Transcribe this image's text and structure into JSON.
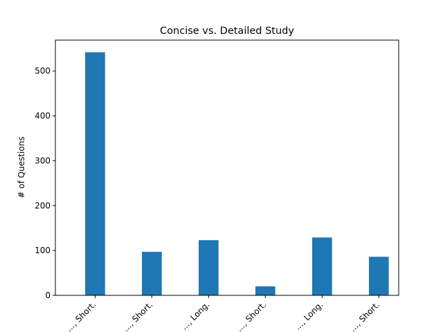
{
  "chart_data": {
    "type": "bar",
    "title": "Concise vs. Detailed Study",
    "xlabel": "",
    "ylabel": "# of Questions",
    "categories": [
      "..., Short.",
      "..., Short.",
      "..., Long.",
      "..., Short.",
      "..., Long.",
      "..., Short."
    ],
    "values": [
      542,
      97,
      123,
      20,
      129,
      86
    ],
    "ylim": [
      0,
      569
    ],
    "yticks": [
      0,
      100,
      200,
      300,
      400,
      500
    ],
    "grid": false,
    "bar_color": "#1f77b4"
  }
}
